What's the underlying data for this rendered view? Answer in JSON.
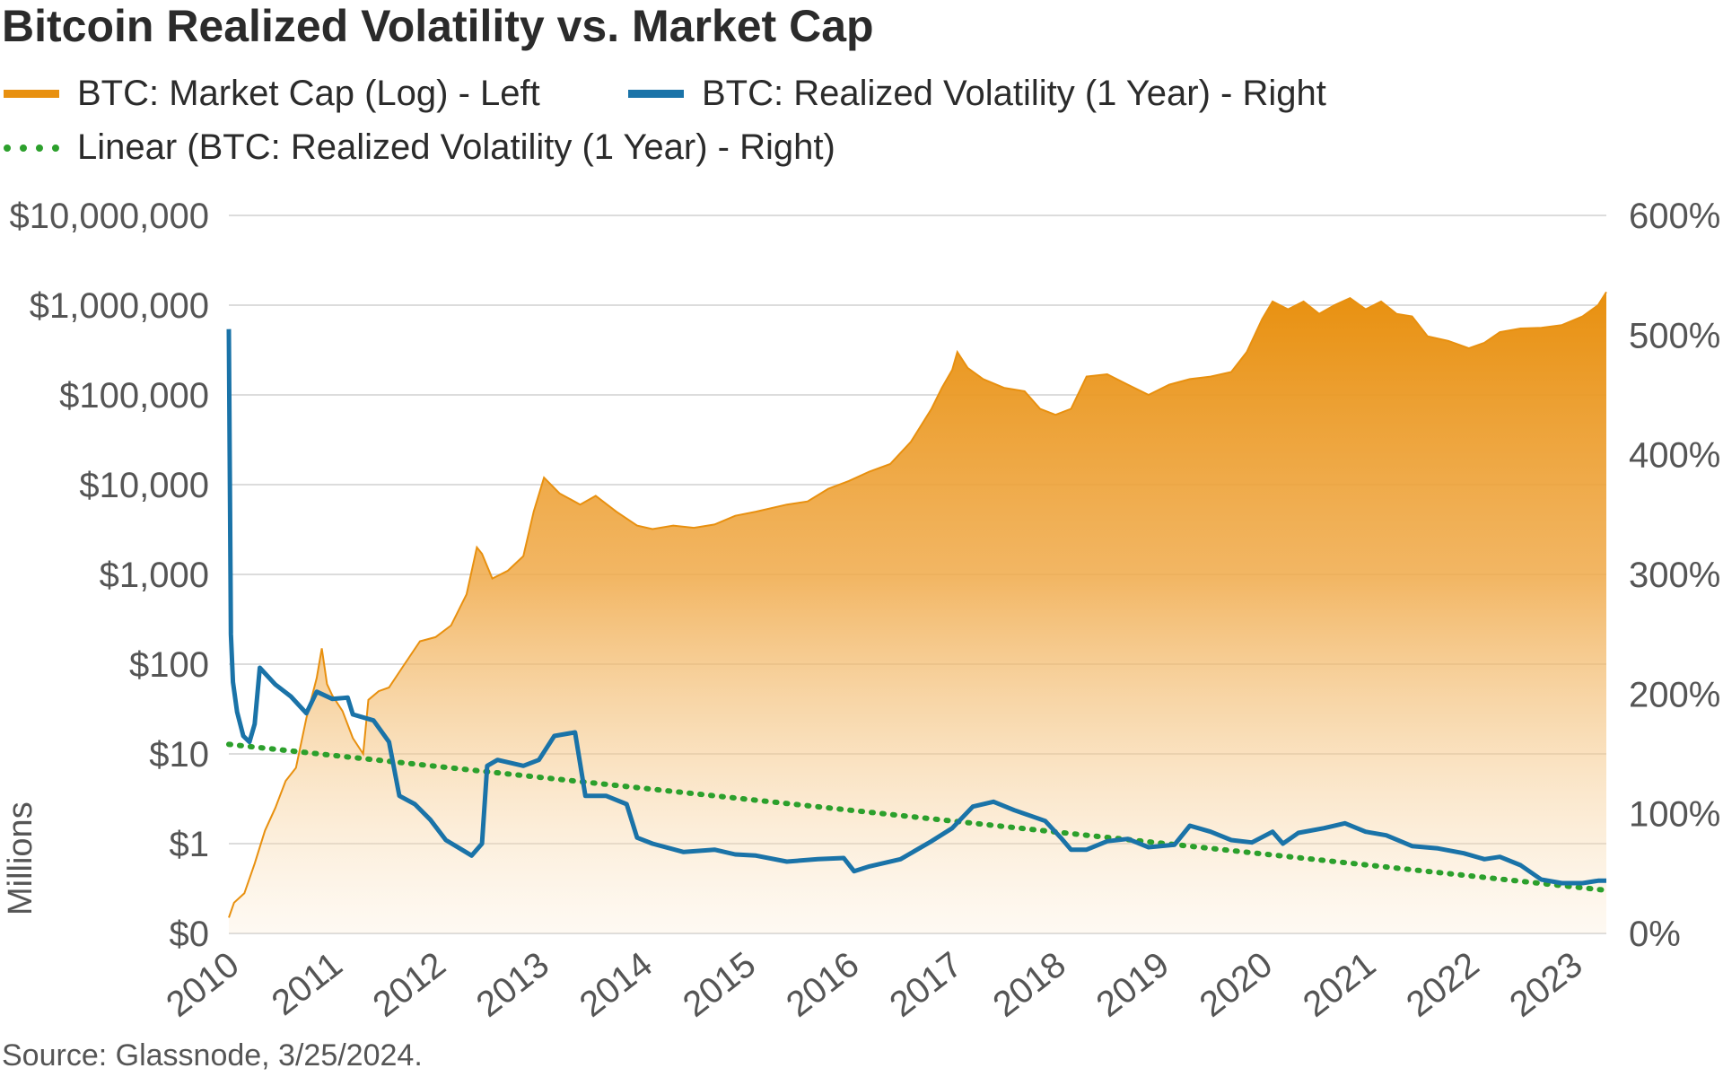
{
  "chart_data": {
    "type": "area",
    "title": "Bitcoin Realized Volatility vs. Market Cap",
    "source": "Source: Glassnode, 3/25/2024.",
    "left_axis": {
      "label": "Millions",
      "scale": "log",
      "ticks": [
        "$0",
        "$1",
        "$10",
        "$100",
        "$1,000",
        "$10,000",
        "$100,000",
        "$1,000,000",
        "$10,000,000"
      ],
      "tick_values": [
        0.1,
        1,
        10,
        100,
        1000,
        10000,
        100000,
        1000000,
        10000000
      ]
    },
    "right_axis": {
      "label": "",
      "ticks": [
        "0%",
        "100%",
        "200%",
        "300%",
        "400%",
        "500%",
        "600%"
      ],
      "tick_values": [
        0,
        100,
        200,
        300,
        400,
        500,
        600
      ],
      "ylim": [
        0,
        600
      ]
    },
    "x_axis": {
      "ticks": [
        "2010",
        "2011",
        "2012",
        "2013",
        "2014",
        "2015",
        "2016",
        "2017",
        "2018",
        "2019",
        "2020",
        "2021",
        "2022",
        "2023"
      ],
      "tick_values": [
        2010,
        2011,
        2012,
        2013,
        2014,
        2015,
        2016,
        2017,
        2018,
        2019,
        2020,
        2021,
        2022,
        2023
      ],
      "xlim": [
        2010,
        2023.33
      ]
    },
    "grid": true,
    "legend_placement": "top-left",
    "series": [
      {
        "name": "BTC: Market Cap (Log) - Left",
        "axis": "left",
        "style": "area",
        "color": "#E8900F",
        "points": [
          [
            2010.0,
            0.15
          ],
          [
            2010.05,
            0.22
          ],
          [
            2010.15,
            0.28
          ],
          [
            2010.25,
            0.6
          ],
          [
            2010.35,
            1.4
          ],
          [
            2010.45,
            2.5
          ],
          [
            2010.55,
            5
          ],
          [
            2010.65,
            7
          ],
          [
            2010.75,
            25
          ],
          [
            2010.85,
            70
          ],
          [
            2010.9,
            150
          ],
          [
            2010.95,
            60
          ],
          [
            2011.0,
            45
          ],
          [
            2011.1,
            30
          ],
          [
            2011.2,
            15
          ],
          [
            2011.3,
            10
          ],
          [
            2011.35,
            40
          ],
          [
            2011.45,
            50
          ],
          [
            2011.55,
            55
          ],
          [
            2011.7,
            100
          ],
          [
            2011.85,
            180
          ],
          [
            2012.0,
            200
          ],
          [
            2012.15,
            270
          ],
          [
            2012.3,
            600
          ],
          [
            2012.4,
            2000
          ],
          [
            2012.45,
            1700
          ],
          [
            2012.55,
            900
          ],
          [
            2012.7,
            1100
          ],
          [
            2012.85,
            1600
          ],
          [
            2012.95,
            5000
          ],
          [
            2013.05,
            12000
          ],
          [
            2013.2,
            8000
          ],
          [
            2013.4,
            6000
          ],
          [
            2013.55,
            7500
          ],
          [
            2013.75,
            5000
          ],
          [
            2013.95,
            3500
          ],
          [
            2014.1,
            3200
          ],
          [
            2014.3,
            3500
          ],
          [
            2014.5,
            3300
          ],
          [
            2014.7,
            3600
          ],
          [
            2014.9,
            4500
          ],
          [
            2015.1,
            5000
          ],
          [
            2015.4,
            6000
          ],
          [
            2015.6,
            6500
          ],
          [
            2015.8,
            9000
          ],
          [
            2016.0,
            11000
          ],
          [
            2016.2,
            14000
          ],
          [
            2016.4,
            17000
          ],
          [
            2016.6,
            30000
          ],
          [
            2016.8,
            70000
          ],
          [
            2016.9,
            120000
          ],
          [
            2017.0,
            190000
          ],
          [
            2017.05,
            300000
          ],
          [
            2017.15,
            200000
          ],
          [
            2017.3,
            150000
          ],
          [
            2017.5,
            120000
          ],
          [
            2017.7,
            110000
          ],
          [
            2017.85,
            70000
          ],
          [
            2018.0,
            60000
          ],
          [
            2018.15,
            70000
          ],
          [
            2018.3,
            160000
          ],
          [
            2018.5,
            170000
          ],
          [
            2018.7,
            130000
          ],
          [
            2018.9,
            100000
          ],
          [
            2019.1,
            130000
          ],
          [
            2019.3,
            150000
          ],
          [
            2019.5,
            160000
          ],
          [
            2019.7,
            180000
          ],
          [
            2019.85,
            300000
          ],
          [
            2020.0,
            700000
          ],
          [
            2020.1,
            1100000
          ],
          [
            2020.25,
            900000
          ],
          [
            2020.4,
            1100000
          ],
          [
            2020.55,
            800000
          ],
          [
            2020.7,
            1000000
          ],
          [
            2020.85,
            1200000
          ],
          [
            2021.0,
            900000
          ],
          [
            2021.15,
            1100000
          ],
          [
            2021.3,
            800000
          ],
          [
            2021.45,
            750000
          ],
          [
            2021.6,
            450000
          ],
          [
            2021.8,
            400000
          ],
          [
            2022.0,
            330000
          ],
          [
            2022.15,
            380000
          ],
          [
            2022.3,
            500000
          ],
          [
            2022.5,
            550000
          ],
          [
            2022.7,
            560000
          ],
          [
            2022.9,
            600000
          ],
          [
            2023.1,
            750000
          ],
          [
            2023.25,
            1000000
          ],
          [
            2023.33,
            1400000
          ]
        ]
      },
      {
        "name": "BTC: Realized Volatility (1 Year) - Right",
        "axis": "right",
        "style": "line",
        "color": "#1A73A8",
        "points": [
          [
            2010.0,
            505
          ],
          [
            2010.02,
            250
          ],
          [
            2010.04,
            210
          ],
          [
            2010.08,
            185
          ],
          [
            2010.14,
            165
          ],
          [
            2010.2,
            160
          ],
          [
            2010.25,
            175
          ],
          [
            2010.3,
            222
          ],
          [
            2010.45,
            208
          ],
          [
            2010.6,
            198
          ],
          [
            2010.75,
            184
          ],
          [
            2010.85,
            202
          ],
          [
            2011.0,
            196
          ],
          [
            2011.15,
            197
          ],
          [
            2011.2,
            183
          ],
          [
            2011.4,
            178
          ],
          [
            2011.55,
            160
          ],
          [
            2011.65,
            115
          ],
          [
            2011.8,
            108
          ],
          [
            2011.95,
            95
          ],
          [
            2012.1,
            78
          ],
          [
            2012.35,
            65
          ],
          [
            2012.45,
            75
          ],
          [
            2012.5,
            140
          ],
          [
            2012.6,
            145
          ],
          [
            2012.85,
            140
          ],
          [
            2013.0,
            145
          ],
          [
            2013.15,
            165
          ],
          [
            2013.35,
            168
          ],
          [
            2013.45,
            115
          ],
          [
            2013.65,
            115
          ],
          [
            2013.85,
            108
          ],
          [
            2013.95,
            80
          ],
          [
            2014.1,
            75
          ],
          [
            2014.4,
            68
          ],
          [
            2014.7,
            70
          ],
          [
            2014.9,
            66
          ],
          [
            2015.1,
            65
          ],
          [
            2015.4,
            60
          ],
          [
            2015.7,
            62
          ],
          [
            2015.95,
            63
          ],
          [
            2016.05,
            52
          ],
          [
            2016.2,
            56
          ],
          [
            2016.5,
            62
          ],
          [
            2016.8,
            77
          ],
          [
            2017.0,
            88
          ],
          [
            2017.2,
            106
          ],
          [
            2017.4,
            110
          ],
          [
            2017.6,
            103
          ],
          [
            2017.9,
            94
          ],
          [
            2018.05,
            80
          ],
          [
            2018.15,
            70
          ],
          [
            2018.3,
            70
          ],
          [
            2018.5,
            77
          ],
          [
            2018.7,
            79
          ],
          [
            2018.9,
            72
          ],
          [
            2019.15,
            74
          ],
          [
            2019.3,
            90
          ],
          [
            2019.5,
            85
          ],
          [
            2019.7,
            78
          ],
          [
            2019.9,
            76
          ],
          [
            2020.1,
            85
          ],
          [
            2020.2,
            75
          ],
          [
            2020.35,
            84
          ],
          [
            2020.6,
            88
          ],
          [
            2020.8,
            92
          ],
          [
            2021.0,
            85
          ],
          [
            2021.2,
            82
          ],
          [
            2021.45,
            73
          ],
          [
            2021.7,
            71
          ],
          [
            2021.95,
            67
          ],
          [
            2022.15,
            62
          ],
          [
            2022.3,
            64
          ],
          [
            2022.5,
            57
          ],
          [
            2022.7,
            45
          ],
          [
            2022.9,
            42
          ],
          [
            2023.1,
            42
          ],
          [
            2023.25,
            44
          ],
          [
            2023.33,
            44
          ]
        ]
      },
      {
        "name": "Linear (BTC: Realized Volatility (1 Year) - Right)",
        "axis": "right",
        "style": "dotted",
        "color": "#2CA02C",
        "points": [
          [
            2010.0,
            158
          ],
          [
            2023.33,
            36
          ]
        ]
      }
    ]
  }
}
